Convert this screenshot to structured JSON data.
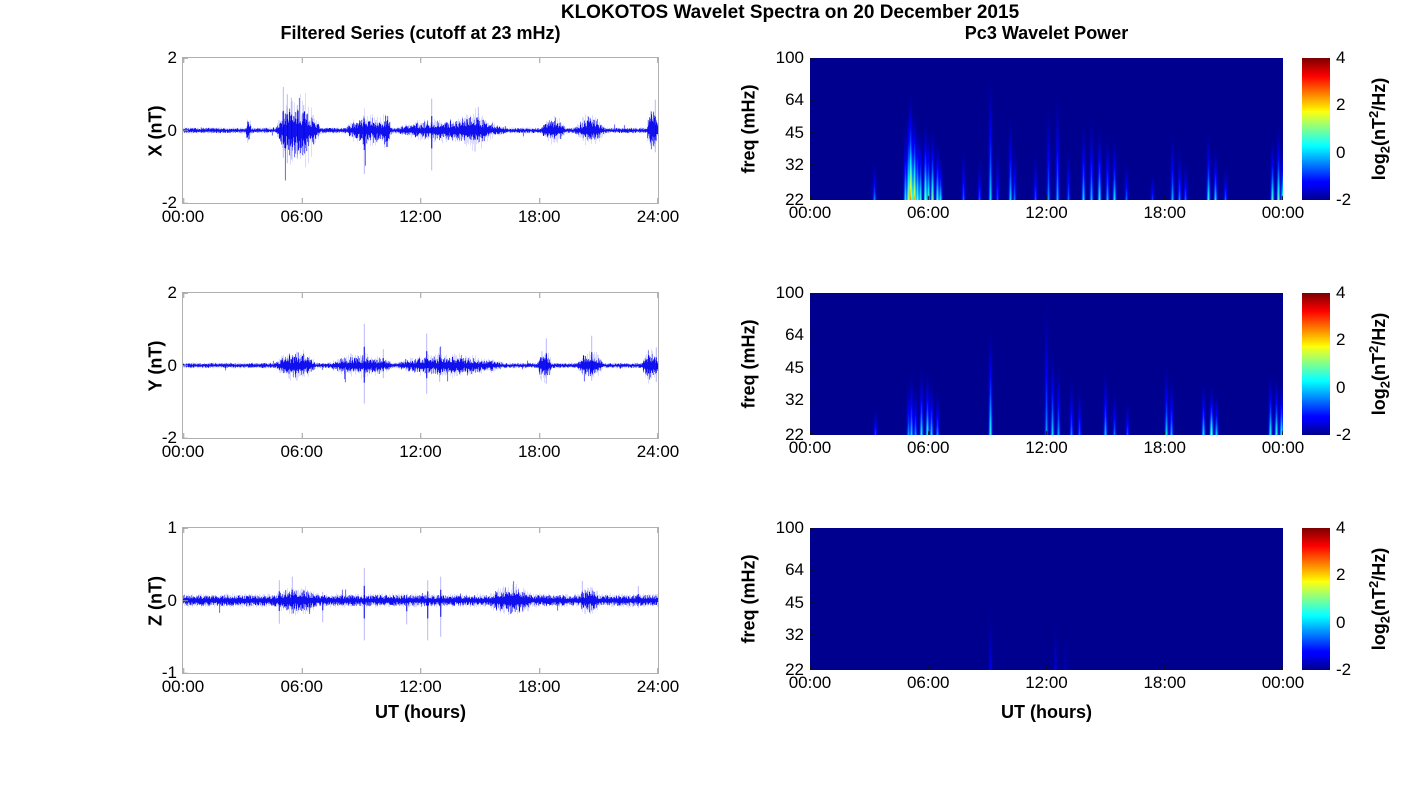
{
  "figure_title": "KLOKOTOS Wavelet Spectra on 20 December 2015",
  "column_titles": {
    "left": "Filtered Series (cutoff at 23 mHz)",
    "right": "Pc3 Wavelet Power"
  },
  "xlabel": "UT (hours)",
  "colorbar": {
    "ticks": [
      "4",
      "2",
      "0",
      "-2"
    ],
    "clim": [
      -2,
      4
    ],
    "colormap": "jet",
    "label": {
      "pre": "log",
      "sub": "2",
      "mid": "(nT",
      "sup": "2",
      "post": "/Hz)"
    }
  },
  "chart_data": [
    {
      "id": "x_filtered_series",
      "type": "line",
      "component": "X",
      "ylabel": "X (nT)",
      "ylim": [
        -2,
        2
      ],
      "yticks": [
        "2",
        "0",
        "-2"
      ],
      "xticks": [
        "00:00",
        "06:00",
        "12:00",
        "18:00",
        "24:00"
      ],
      "time_range_hours": [
        0,
        24
      ],
      "line_color": "#0000EE",
      "noise_amp_nT": 0.07,
      "bursts_format": [
        "start_hour",
        "end_hour",
        "peak_amp_nT"
      ],
      "bursts": [
        [
          3.15,
          3.45,
          0.28
        ],
        [
          4.7,
          6.9,
          0.85
        ],
        [
          8.2,
          10.6,
          0.33
        ],
        [
          8.9,
          9.4,
          0.45
        ],
        [
          10.0,
          10.5,
          0.5
        ],
        [
          10.8,
          16.3,
          0.26
        ],
        [
          13.6,
          15.6,
          0.45
        ],
        [
          18.1,
          19.3,
          0.33
        ],
        [
          19.8,
          21.3,
          0.34
        ],
        [
          23.4,
          24.0,
          0.55
        ]
      ],
      "spikes_format": [
        "hour",
        "up_nT",
        "down_nT"
      ],
      "spikes": [
        [
          5.05,
          1.2,
          -0.75
        ],
        [
          5.25,
          1.0,
          -0.9
        ],
        [
          5.45,
          0.9,
          -0.8
        ],
        [
          5.75,
          0.7,
          -0.75
        ],
        [
          6.1,
          0.7,
          -0.6
        ],
        [
          9.15,
          0.4,
          -1.2
        ],
        [
          12.55,
          0.88,
          -1.1
        ],
        [
          14.9,
          0.65,
          -0.35
        ],
        [
          23.85,
          0.85,
          -0.6
        ]
      ]
    },
    {
      "id": "y_filtered_series",
      "type": "line",
      "component": "Y",
      "ylabel": "Y (nT)",
      "ylim": [
        -2,
        2
      ],
      "yticks": [
        "2",
        "0",
        "-2"
      ],
      "xticks": [
        "00:00",
        "06:00",
        "12:00",
        "18:00",
        "24:00"
      ],
      "time_range_hours": [
        0,
        24
      ],
      "line_color": "#0000EE",
      "noise_amp_nT": 0.065,
      "bursts_format": [
        "start_hour",
        "end_hour",
        "peak_amp_nT"
      ],
      "bursts": [
        [
          4.7,
          6.7,
          0.32
        ],
        [
          5.9,
          6.2,
          0.4
        ],
        [
          7.4,
          10.6,
          0.24
        ],
        [
          10.8,
          16.2,
          0.24
        ],
        [
          17.9,
          18.6,
          0.38
        ],
        [
          19.9,
          21.2,
          0.32
        ],
        [
          23.2,
          24.0,
          0.42
        ]
      ],
      "spikes_format": [
        "hour",
        "up_nT",
        "down_nT"
      ],
      "spikes": [
        [
          9.15,
          1.15,
          -1.05
        ],
        [
          10.1,
          0.45,
          -0.35
        ],
        [
          12.3,
          0.88,
          -0.78
        ],
        [
          12.95,
          0.5,
          -0.45
        ],
        [
          18.35,
          0.75,
          -0.5
        ],
        [
          20.65,
          0.82,
          -0.42
        ],
        [
          23.9,
          0.5,
          -0.45
        ]
      ]
    },
    {
      "id": "z_filtered_series",
      "type": "line",
      "component": "Z",
      "ylabel": "Z (nT)",
      "ylim": [
        -1,
        1
      ],
      "yticks": [
        "1",
        "0",
        "-1"
      ],
      "xticks": [
        "00:00",
        "06:00",
        "12:00",
        "18:00",
        "24:00"
      ],
      "time_range_hours": [
        0,
        24
      ],
      "line_color": "#0000EE",
      "noise_amp_nT": 0.075,
      "bursts_format": [
        "start_hour",
        "end_hour",
        "peak_amp_nT"
      ],
      "bursts": [
        [
          4.6,
          6.8,
          0.1
        ],
        [
          15.5,
          17.6,
          0.13
        ],
        [
          20.0,
          21.0,
          0.1
        ]
      ],
      "spikes_format": [
        "hour",
        "up_nT",
        "down_nT"
      ],
      "spikes": [
        [
          4.85,
          0.28,
          -0.32
        ],
        [
          5.5,
          0.33,
          -0.18
        ],
        [
          7.05,
          0.12,
          -0.3
        ],
        [
          9.15,
          0.45,
          -0.55
        ],
        [
          11.3,
          0.08,
          -0.33
        ],
        [
          12.35,
          0.28,
          -0.55
        ],
        [
          13.0,
          0.33,
          -0.5
        ],
        [
          20.15,
          0.27,
          -0.12
        ],
        [
          23.0,
          0.2,
          -0.1
        ]
      ]
    },
    {
      "id": "x_wavelet_power",
      "type": "heatmap",
      "component": "X",
      "ylabel": "freq (mHz)",
      "yscale": "log",
      "freq_range_mHz": [
        22,
        100
      ],
      "yticks": [
        "100",
        "64",
        "45",
        "32",
        "22"
      ],
      "xticks": [
        "00:00",
        "06:00",
        "12:00",
        "18:00",
        "00:00"
      ],
      "time_range_hours": [
        0,
        24
      ],
      "clim_log2_power": [
        -2,
        4
      ],
      "background_log2_power": -2,
      "events_format": [
        "hour",
        "peak_log2_power",
        "top_freq_mHz"
      ],
      "events": [
        [
          3.25,
          -0.3,
          34
        ],
        [
          4.8,
          0.5,
          50
        ],
        [
          4.95,
          1.5,
          62
        ],
        [
          5.05,
          2.6,
          72
        ],
        [
          5.15,
          2.0,
          60
        ],
        [
          5.3,
          2.3,
          58
        ],
        [
          5.45,
          1.2,
          50
        ],
        [
          5.6,
          0.8,
          46
        ],
        [
          5.85,
          1.5,
          52
        ],
        [
          6.0,
          1.0,
          46
        ],
        [
          6.2,
          1.3,
          48
        ],
        [
          6.45,
          0.9,
          42
        ],
        [
          6.6,
          0.4,
          36
        ],
        [
          7.75,
          -0.5,
          40
        ],
        [
          8.6,
          -0.6,
          35
        ],
        [
          9.15,
          0.3,
          88
        ],
        [
          9.5,
          -0.7,
          40
        ],
        [
          10.15,
          0.2,
          55
        ],
        [
          10.35,
          -0.4,
          40
        ],
        [
          11.4,
          -0.6,
          38
        ],
        [
          12.1,
          -0.2,
          62
        ],
        [
          12.55,
          0.0,
          72
        ],
        [
          13.1,
          -0.5,
          40
        ],
        [
          13.85,
          0.3,
          52
        ],
        [
          14.25,
          0.1,
          56
        ],
        [
          14.65,
          0.6,
          50
        ],
        [
          15.05,
          0.0,
          46
        ],
        [
          15.45,
          0.4,
          44
        ],
        [
          16.05,
          -0.5,
          34
        ],
        [
          17.35,
          -0.8,
          30
        ],
        [
          18.35,
          0.0,
          46
        ],
        [
          18.7,
          -0.3,
          40
        ],
        [
          19.05,
          -0.5,
          34
        ],
        [
          20.2,
          0.6,
          46
        ],
        [
          20.55,
          0.3,
          40
        ],
        [
          21.05,
          -0.5,
          32
        ],
        [
          23.45,
          0.8,
          44
        ],
        [
          23.75,
          1.0,
          50
        ],
        [
          23.95,
          0.6,
          40
        ]
      ]
    },
    {
      "id": "y_wavelet_power",
      "type": "heatmap",
      "component": "Y",
      "ylabel": "freq (mHz)",
      "yscale": "log",
      "freq_range_mHz": [
        22,
        100
      ],
      "yticks": [
        "100",
        "64",
        "45",
        "32",
        "22"
      ],
      "xticks": [
        "00:00",
        "06:00",
        "12:00",
        "18:00",
        "00:00"
      ],
      "time_range_hours": [
        0,
        24
      ],
      "clim_log2_power": [
        -2,
        4
      ],
      "background_log2_power": -2,
      "events_format": [
        "hour",
        "peak_log2_power",
        "top_freq_mHz"
      ],
      "events": [
        [
          3.3,
          -0.7,
          30
        ],
        [
          4.95,
          -0.2,
          40
        ],
        [
          5.15,
          0.2,
          44
        ],
        [
          5.35,
          -0.2,
          38
        ],
        [
          5.65,
          0.5,
          46
        ],
        [
          5.95,
          0.8,
          44
        ],
        [
          6.15,
          0.3,
          40
        ],
        [
          6.45,
          -0.2,
          36
        ],
        [
          9.15,
          0.7,
          72
        ],
        [
          11.95,
          -0.1,
          95
        ],
        [
          12.3,
          0.3,
          56
        ],
        [
          12.6,
          -0.1,
          48
        ],
        [
          13.25,
          -0.3,
          42
        ],
        [
          13.65,
          -0.5,
          38
        ],
        [
          14.95,
          0.1,
          46
        ],
        [
          15.45,
          -0.4,
          36
        ],
        [
          16.1,
          -0.6,
          32
        ],
        [
          18.05,
          0.3,
          48
        ],
        [
          18.3,
          0.0,
          42
        ],
        [
          19.95,
          0.4,
          40
        ],
        [
          20.35,
          1.3,
          38
        ],
        [
          20.6,
          0.2,
          35
        ],
        [
          23.35,
          0.6,
          44
        ],
        [
          23.65,
          0.8,
          42
        ],
        [
          23.9,
          0.7,
          40
        ]
      ]
    },
    {
      "id": "z_wavelet_power",
      "type": "heatmap",
      "component": "Z",
      "ylabel": "freq (mHz)",
      "yscale": "log",
      "freq_range_mHz": [
        22,
        100
      ],
      "yticks": [
        "100",
        "64",
        "45",
        "32",
        "22"
      ],
      "xticks": [
        "00:00",
        "06:00",
        "12:00",
        "18:00",
        "00:00"
      ],
      "time_range_hours": [
        0,
        24
      ],
      "clim_log2_power": [
        -2,
        4
      ],
      "background_log2_power": -2,
      "events_format": [
        "hour",
        "peak_log2_power",
        "top_freq_mHz"
      ],
      "events": [
        [
          9.15,
          -1.4,
          45
        ],
        [
          12.45,
          -1.5,
          40
        ],
        [
          12.95,
          -1.7,
          34
        ]
      ]
    }
  ]
}
